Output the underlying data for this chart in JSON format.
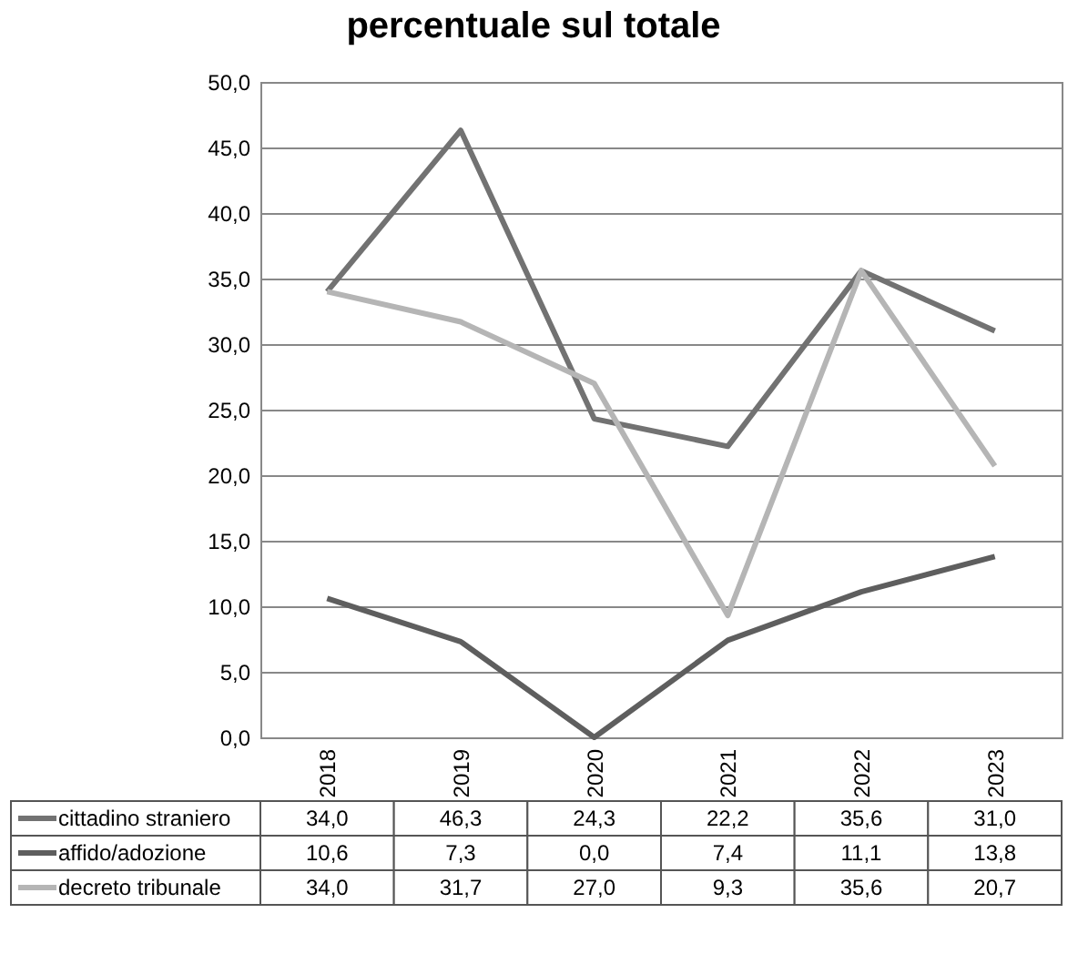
{
  "chart_data": {
    "type": "line",
    "title": "percentuale sul totale",
    "categories": [
      "2018",
      "2019",
      "2020",
      "2021",
      "2022",
      "2023"
    ],
    "series": [
      {
        "name": "cittadino straniero",
        "color": "#727272",
        "values": [
          34.0,
          46.3,
          24.3,
          22.2,
          35.6,
          31.0
        ],
        "value_labels": [
          "34,0",
          "46,3",
          "24,3",
          "22,2",
          "35,6",
          "31,0"
        ]
      },
      {
        "name": "affido/adozione",
        "color": "#5e5e5e",
        "values": [
          10.6,
          7.3,
          0.0,
          7.4,
          11.1,
          13.8
        ],
        "value_labels": [
          "10,6",
          "7,3",
          "0,0",
          "7,4",
          "11,1",
          "13,8"
        ]
      },
      {
        "name": "decreto tribunale",
        "color": "#b5b5b5",
        "values": [
          34.0,
          31.7,
          27.0,
          9.3,
          35.6,
          20.7
        ],
        "value_labels": [
          "34,0",
          "31,7",
          "27,0",
          "9,3",
          "35,6",
          "20,7"
        ]
      }
    ],
    "ylim": [
      0,
      50
    ],
    "yticks": [
      {
        "value": 0,
        "label": "0,0"
      },
      {
        "value": 5,
        "label": "5,0"
      },
      {
        "value": 10,
        "label": "10,0"
      },
      {
        "value": 15,
        "label": "15,0"
      },
      {
        "value": 20,
        "label": "20,0"
      },
      {
        "value": 25,
        "label": "25,0"
      },
      {
        "value": 30,
        "label": "30,0"
      },
      {
        "value": 35,
        "label": "35,0"
      },
      {
        "value": 40,
        "label": "40,0"
      },
      {
        "value": 45,
        "label": "45,0"
      },
      {
        "value": 50,
        "label": "50,0"
      }
    ],
    "grid": "y",
    "legend": "bottom"
  }
}
